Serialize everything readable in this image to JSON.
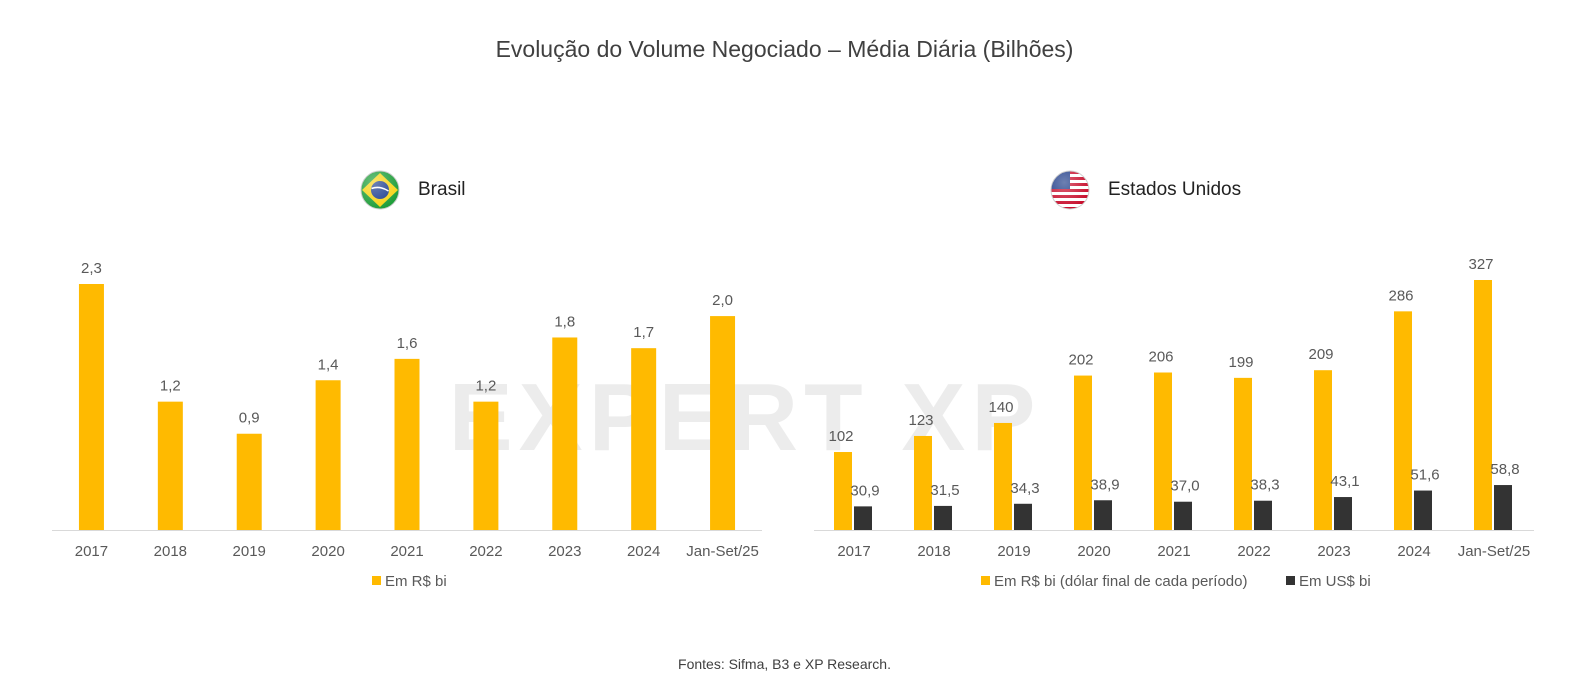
{
  "title": "Evolução do Volume Negociado – Média Diária (Bilhões)",
  "source": "Fontes: Sifma, B3 e XP Research.",
  "watermark": "EXPERT XP",
  "colors": {
    "gold": "#FFBA00",
    "dark": "#333333",
    "axis": "#D9D9D9",
    "text": "#595959"
  },
  "chart_data": [
    {
      "type": "bar",
      "title": "Brasil",
      "flag": "brazil-flag",
      "categories": [
        "2017",
        "2018",
        "2019",
        "2020",
        "2021",
        "2022",
        "2023",
        "2024",
        "Jan-Set/25"
      ],
      "series": [
        {
          "name": "Em R$ bi",
          "color": "#FFBA00",
          "values": [
            2.3,
            1.2,
            0.9,
            1.4,
            1.6,
            1.2,
            1.8,
            1.7,
            2.0
          ],
          "labels": [
            "2,3",
            "1,2",
            "0,9",
            "1,4",
            "1,6",
            "1,2",
            "1,8",
            "1,7",
            "2,0"
          ]
        }
      ],
      "ylim": [
        0,
        2.5
      ],
      "legend_position": "bottom"
    },
    {
      "type": "bar",
      "title": "Estados Unidos",
      "flag": "usa-flag",
      "categories": [
        "2017",
        "2018",
        "2019",
        "2020",
        "2021",
        "2022",
        "2023",
        "2024",
        "Jan-Set/25"
      ],
      "series": [
        {
          "name": "Em R$ bi (dólar final de cada período)",
          "color": "#FFBA00",
          "values": [
            102,
            123,
            140,
            202,
            206,
            199,
            209,
            286,
            327
          ],
          "labels": [
            "102",
            "123",
            "140",
            "202",
            "206",
            "199",
            "209",
            "286",
            "327"
          ]
        },
        {
          "name": "Em US$ bi",
          "color": "#333333",
          "values": [
            30.9,
            31.5,
            34.3,
            38.9,
            37.0,
            38.3,
            43.1,
            51.6,
            58.8
          ],
          "labels": [
            "30,9",
            "31,5",
            "34,3",
            "38,9",
            "37,0",
            "38,3",
            "43,1",
            "51,6",
            "58,8"
          ]
        }
      ],
      "ylim": [
        0,
        350
      ],
      "legend_position": "bottom"
    }
  ]
}
